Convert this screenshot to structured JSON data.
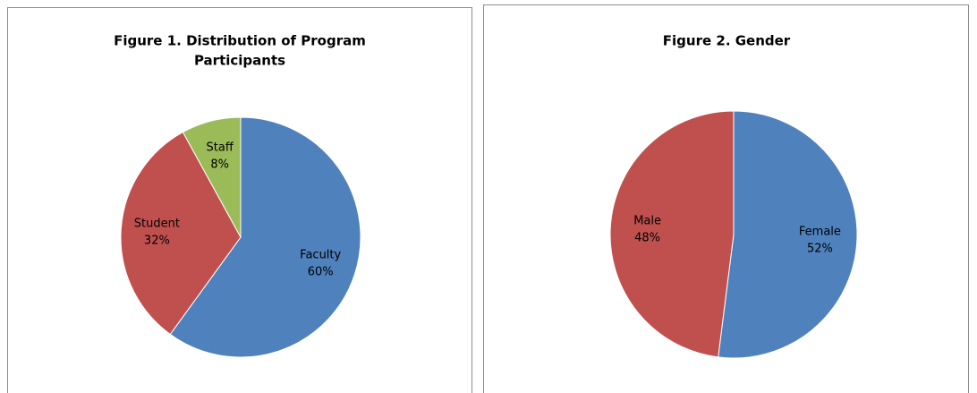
{
  "chart_data": [
    {
      "type": "pie",
      "title": [
        "Figure 1. Distribution of Program",
        "Participants"
      ],
      "categories": [
        "Faculty",
        "Student",
        "Staff"
      ],
      "values": [
        60,
        32,
        8
      ],
      "value_labels": [
        "60%",
        "32%",
        "8%"
      ],
      "colors": [
        "#4f81bd",
        "#c0504d",
        "#9bbb59"
      ]
    },
    {
      "type": "pie",
      "title": [
        "Figure 2. Gender"
      ],
      "categories": [
        "Female",
        "Male"
      ],
      "values": [
        52,
        48
      ],
      "value_labels": [
        "52%",
        "48%"
      ],
      "colors": [
        "#4f81bd",
        "#c0504d"
      ]
    }
  ]
}
